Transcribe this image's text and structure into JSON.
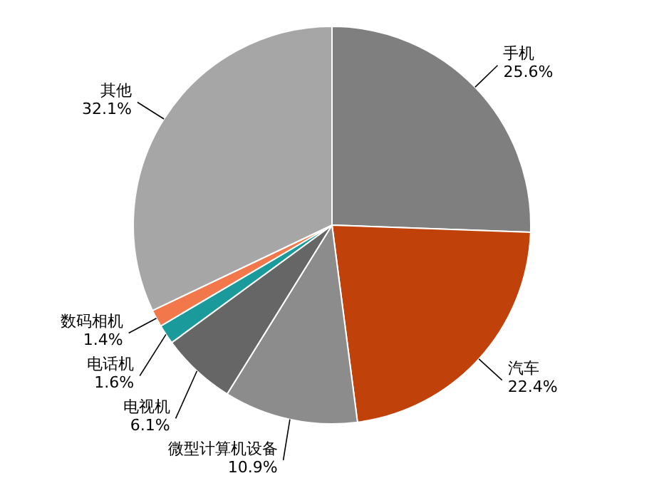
{
  "chart_data": {
    "type": "pie",
    "categories": [
      "手机",
      "汽车",
      "微型计算机设备",
      "电视机",
      "电话机",
      "数码相机",
      "其他"
    ],
    "values": [
      25.6,
      22.4,
      10.9,
      6.1,
      1.6,
      1.4,
      32.1
    ],
    "colors": [
      "#7f7f7f",
      "#c0410a",
      "#8c8c8c",
      "#666666",
      "#1a9a9a",
      "#f2784b",
      "#a6a6a6"
    ],
    "value_labels": [
      "25.6%",
      "22.4%",
      "10.9%",
      "6.1%",
      "1.6%",
      "1.4%",
      "32.1%"
    ],
    "legend": false
  }
}
